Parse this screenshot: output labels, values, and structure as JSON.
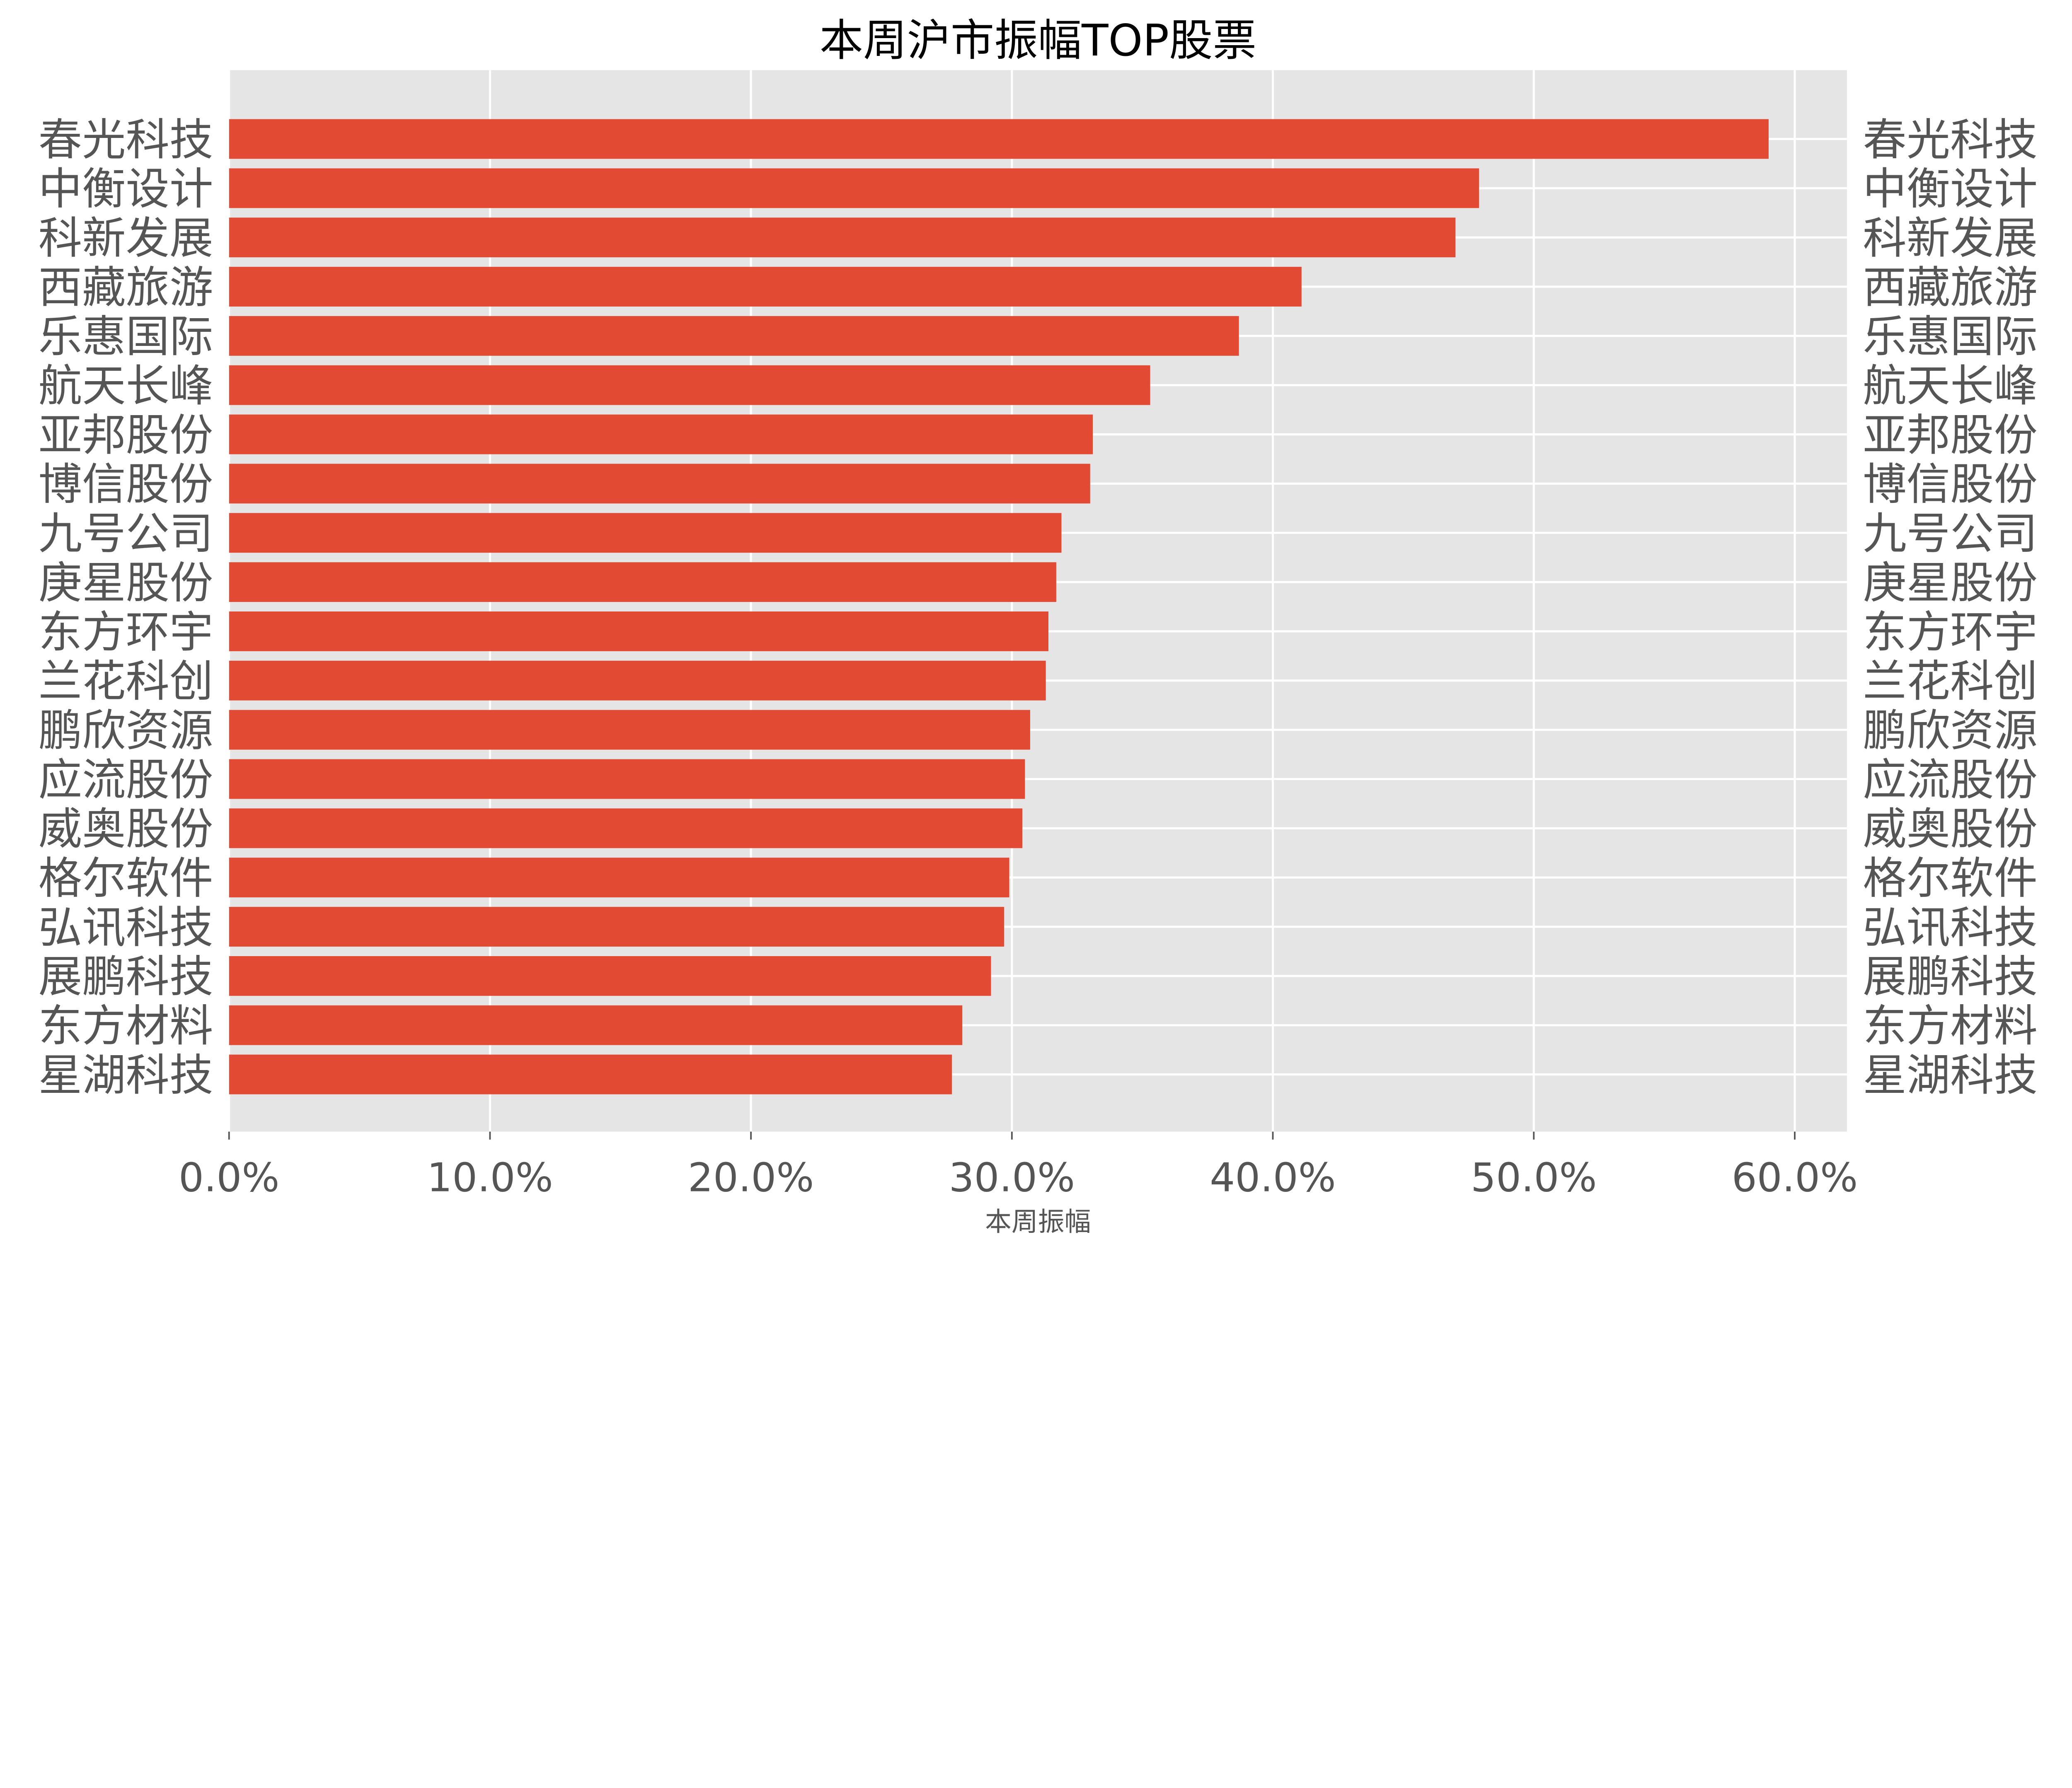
{
  "chart_data": {
    "type": "bar",
    "orientation": "horizontal",
    "title": "本周沪市振幅TOP股票",
    "xlabel": "本周振幅",
    "ylabel": "",
    "xlim": [
      0,
      62
    ],
    "xticks": [
      0,
      10,
      20,
      30,
      40,
      50,
      60
    ],
    "xtick_labels": [
      "0.0%",
      "10.0%",
      "20.0%",
      "30.0%",
      "40.0%",
      "50.0%",
      "60.0%"
    ],
    "grid": true,
    "categories": [
      "春光科技",
      "中衡设计",
      "科新发展",
      "西藏旅游",
      "乐惠国际",
      "航天长峰",
      "亚邦股份",
      "博信股份",
      "九号公司",
      "庚星股份",
      "东方环宇",
      "兰花科创",
      "鹏欣资源",
      "应流股份",
      "威奥股份",
      "格尔软件",
      "弘讯科技",
      "展鹏科技",
      "东方材料",
      "星湖科技"
    ],
    "values": [
      59.0,
      47.9,
      47.0,
      41.1,
      38.7,
      35.3,
      33.1,
      33.0,
      31.9,
      31.7,
      31.4,
      31.3,
      30.7,
      30.5,
      30.4,
      29.9,
      29.7,
      29.2,
      28.1,
      27.7
    ],
    "unit": "%",
    "colors": {
      "bar": "#E24A33",
      "plot_background": "#E5E5E5",
      "grid": "#FFFFFF",
      "text": "#555555",
      "title": "#000000"
    }
  }
}
